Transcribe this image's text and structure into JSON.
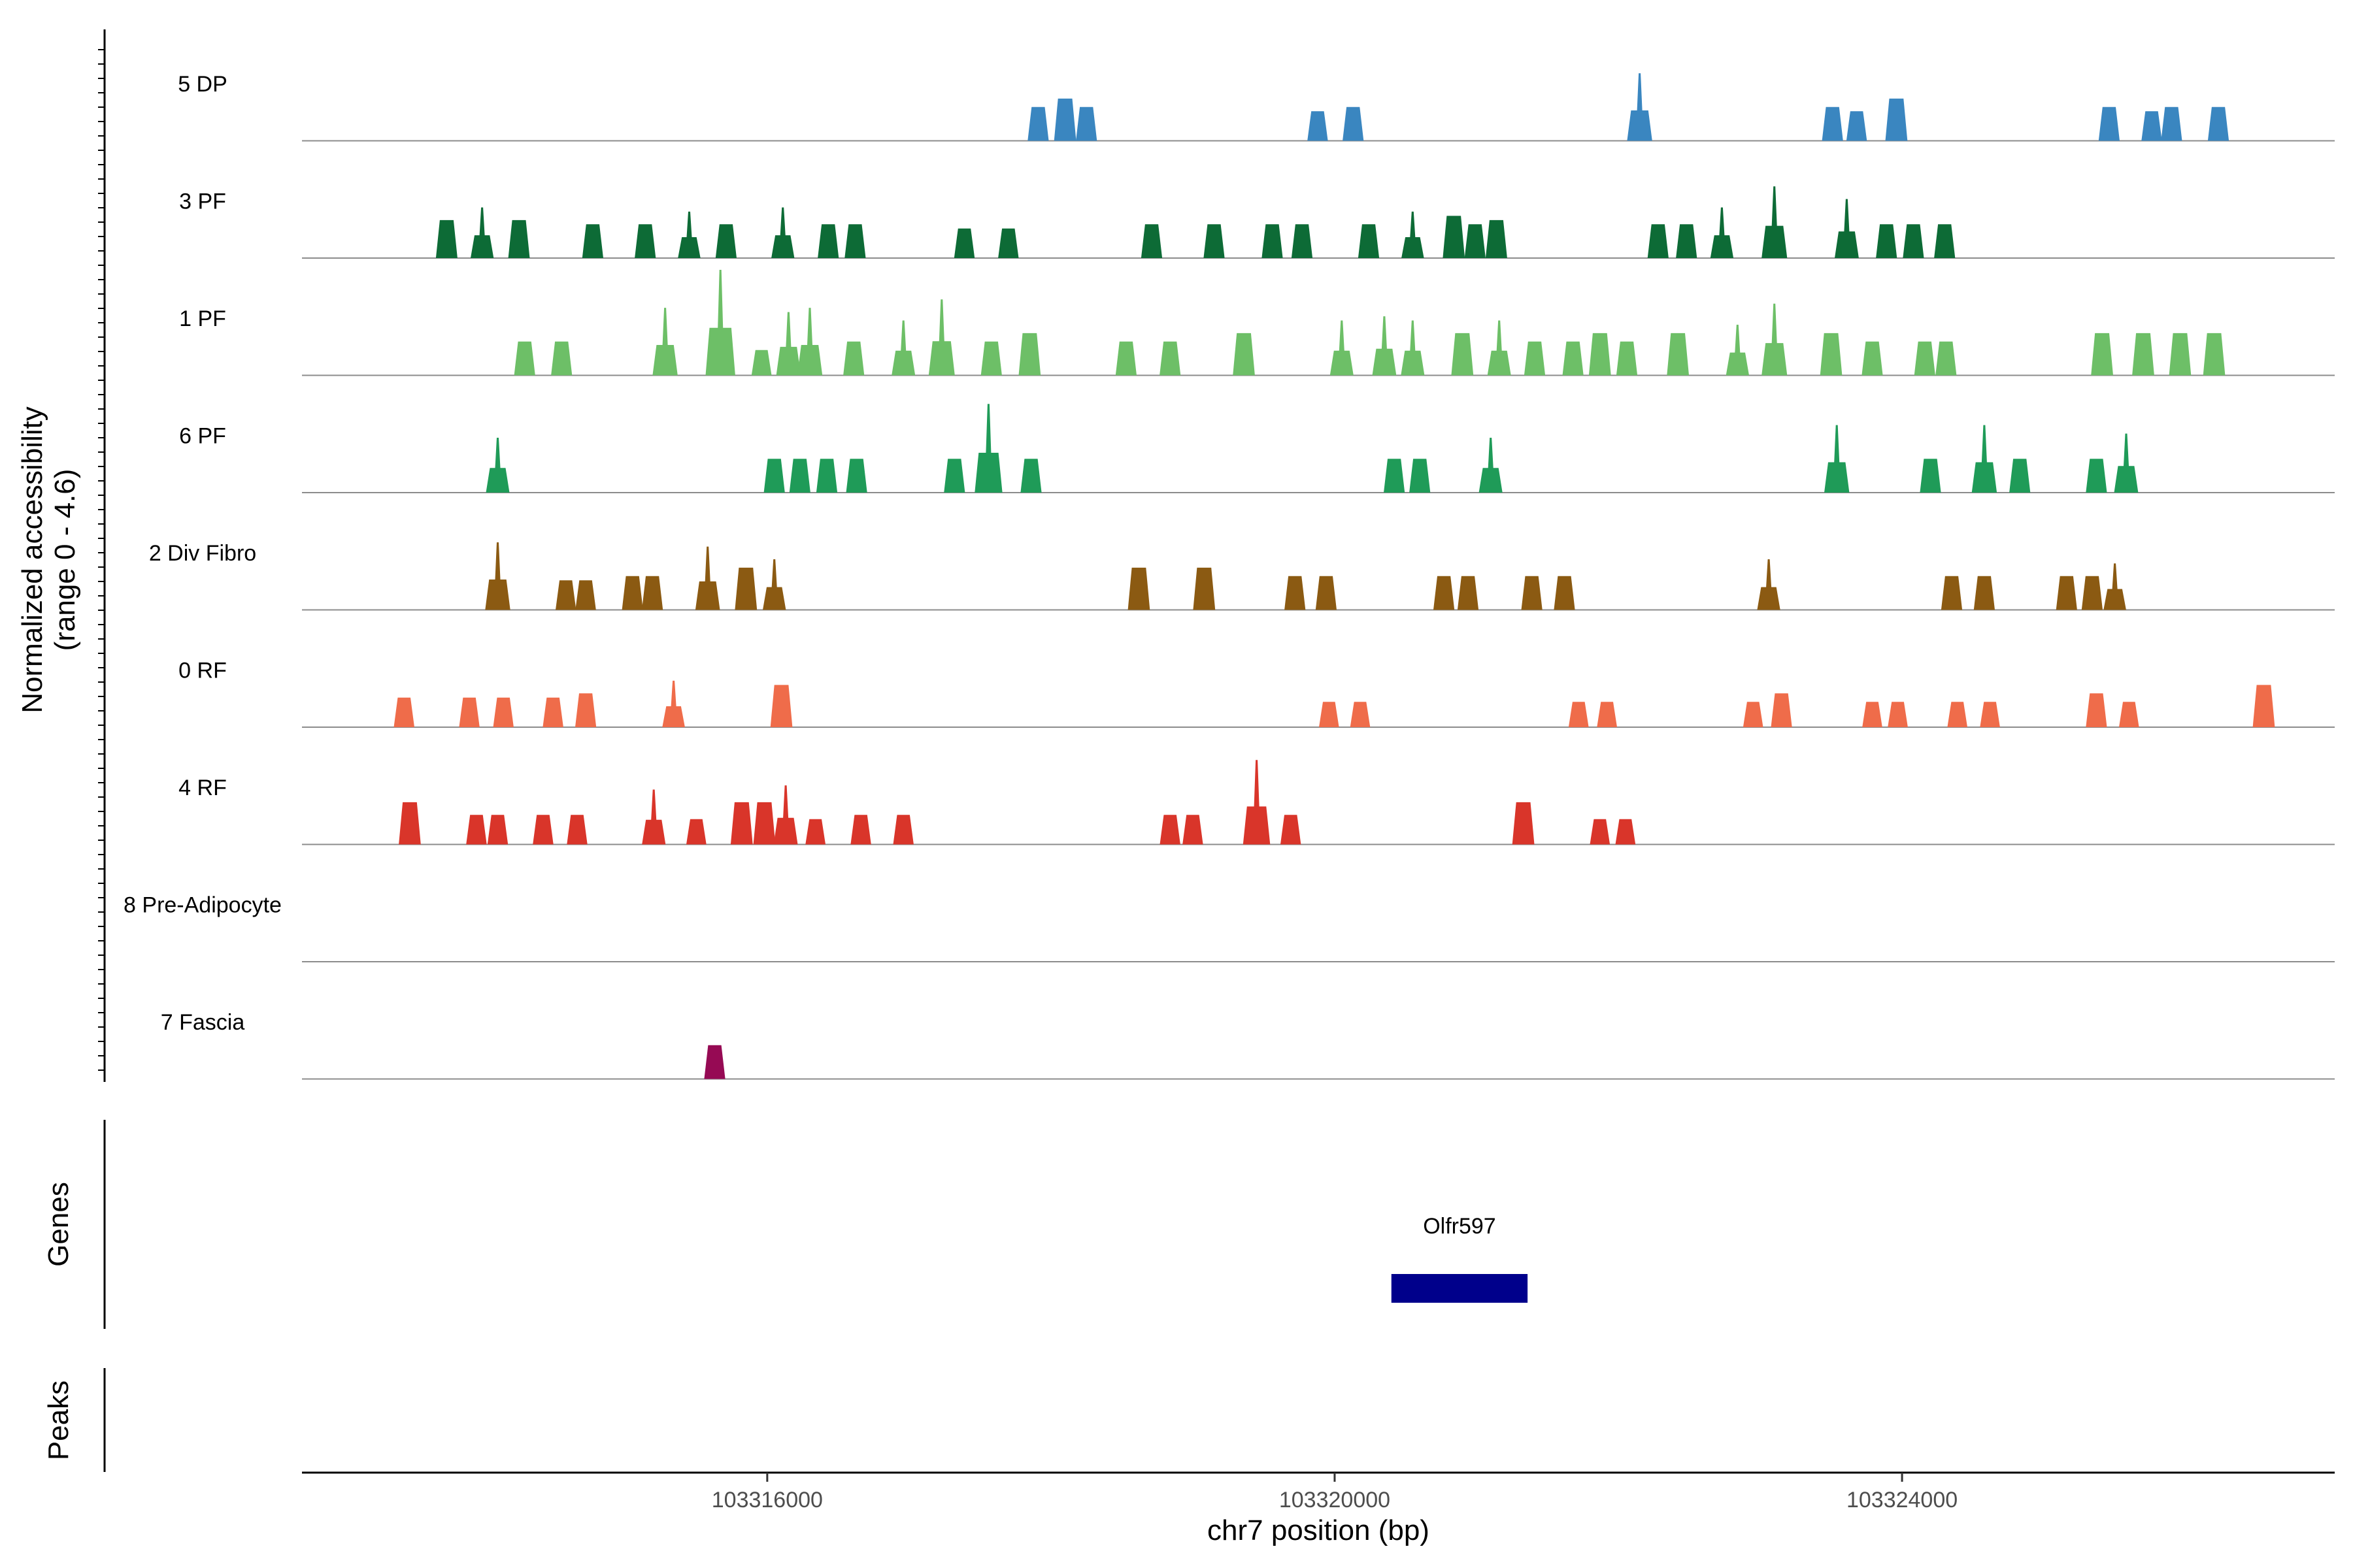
{
  "chart_data": {
    "type": "area",
    "title": "",
    "y_axis_label": "Normalized accessibility",
    "y_axis_range_label": "(range 0 - 4.6)",
    "ylim": [
      0,
      4.6
    ],
    "genes_label": "Genes",
    "peaks_label": "Peaks",
    "xlabel": "chr7 position (bp)",
    "xlim": [
      103312720,
      103327050
    ],
    "x_ticks": [
      103316000,
      103320000,
      103324000
    ],
    "x_tick_labels": [
      "103316000",
      "103320000",
      "103324000"
    ],
    "tracks": [
      {
        "name": "5 DP",
        "color": "#3a86c0",
        "peaks": [
          [
            103317910,
            80
          ],
          [
            103318100,
            100
          ],
          [
            103318250,
            80
          ],
          [
            103319880,
            70
          ],
          [
            103320130,
            80
          ],
          [
            103322150,
            160
          ],
          [
            103323510,
            80
          ],
          [
            103323680,
            70
          ],
          [
            103323960,
            100
          ],
          [
            103325460,
            80
          ],
          [
            103325760,
            70
          ],
          [
            103325900,
            80
          ],
          [
            103326230,
            80
          ]
        ]
      },
      {
        "name": "3 PF",
        "color": "#0d6b36",
        "peaks": [
          [
            103313740,
            90
          ],
          [
            103313990,
            120
          ],
          [
            103314250,
            90
          ],
          [
            103314770,
            80
          ],
          [
            103315140,
            80
          ],
          [
            103315450,
            110
          ],
          [
            103315710,
            80
          ],
          [
            103316110,
            120
          ],
          [
            103316430,
            80
          ],
          [
            103316620,
            80
          ],
          [
            103317390,
            70
          ],
          [
            103317700,
            70
          ],
          [
            103318710,
            80
          ],
          [
            103319150,
            80
          ],
          [
            103319560,
            80
          ],
          [
            103319770,
            80
          ],
          [
            103320240,
            80
          ],
          [
            103320550,
            110
          ],
          [
            103320840,
            100
          ],
          [
            103320990,
            80
          ],
          [
            103321140,
            90
          ],
          [
            103322280,
            80
          ],
          [
            103322480,
            80
          ],
          [
            103322730,
            120
          ],
          [
            103323100,
            170
          ],
          [
            103323610,
            140
          ],
          [
            103323890,
            80
          ],
          [
            103324080,
            80
          ],
          [
            103324300,
            80
          ]
        ]
      },
      {
        "name": "1 PF",
        "color": "#6dbf67",
        "peaks": [
          [
            103314290,
            80
          ],
          [
            103314550,
            80
          ],
          [
            103315280,
            160
          ],
          [
            103315670,
            250
          ],
          [
            103315960,
            60
          ],
          [
            103316150,
            150
          ],
          [
            103316300,
            160
          ],
          [
            103316610,
            80
          ],
          [
            103316960,
            130
          ],
          [
            103317230,
            180
          ],
          [
            103317580,
            80
          ],
          [
            103317850,
            100
          ],
          [
            103318530,
            80
          ],
          [
            103318840,
            80
          ],
          [
            103319360,
            100
          ],
          [
            103320050,
            130
          ],
          [
            103320350,
            140
          ],
          [
            103320550,
            130
          ],
          [
            103320900,
            100
          ],
          [
            103321160,
            130
          ],
          [
            103321410,
            80
          ],
          [
            103321680,
            80
          ],
          [
            103321870,
            100
          ],
          [
            103322060,
            80
          ],
          [
            103322420,
            100
          ],
          [
            103322840,
            120
          ],
          [
            103323100,
            170
          ],
          [
            103323500,
            100
          ],
          [
            103323790,
            80
          ],
          [
            103324160,
            80
          ],
          [
            103324310,
            80
          ],
          [
            103325410,
            100
          ],
          [
            103325700,
            100
          ],
          [
            103325960,
            100
          ],
          [
            103326200,
            100
          ]
        ]
      },
      {
        "name": "6 PF",
        "color": "#1f9b58",
        "peaks": [
          [
            103314100,
            130
          ],
          [
            103316050,
            80
          ],
          [
            103316230,
            80
          ],
          [
            103316420,
            80
          ],
          [
            103316630,
            80
          ],
          [
            103317320,
            80
          ],
          [
            103317560,
            210
          ],
          [
            103317860,
            80
          ],
          [
            103320420,
            80
          ],
          [
            103320600,
            80
          ],
          [
            103321100,
            130
          ],
          [
            103323540,
            160
          ],
          [
            103324200,
            80
          ],
          [
            103324580,
            160
          ],
          [
            103324830,
            80
          ],
          [
            103325370,
            80
          ],
          [
            103325580,
            140
          ]
        ]
      },
      {
        "name": "2 Div Fibro",
        "color": "#8b5a12",
        "peaks": [
          [
            103314100,
            160
          ],
          [
            103314580,
            70
          ],
          [
            103314720,
            70
          ],
          [
            103315050,
            80
          ],
          [
            103315190,
            80
          ],
          [
            103315580,
            150
          ],
          [
            103315850,
            100
          ],
          [
            103316050,
            120
          ],
          [
            103318620,
            100
          ],
          [
            103319080,
            100
          ],
          [
            103319720,
            80
          ],
          [
            103319940,
            80
          ],
          [
            103320770,
            80
          ],
          [
            103320940,
            80
          ],
          [
            103321390,
            80
          ],
          [
            103321620,
            80
          ],
          [
            103323060,
            120
          ],
          [
            103324350,
            80
          ],
          [
            103324580,
            80
          ],
          [
            103325160,
            80
          ],
          [
            103325340,
            80
          ],
          [
            103325500,
            110
          ]
        ]
      },
      {
        "name": "0 RF",
        "color": "#ef6c4a",
        "peaks": [
          [
            103313440,
            70
          ],
          [
            103313900,
            70
          ],
          [
            103314140,
            70
          ],
          [
            103314490,
            70
          ],
          [
            103314720,
            80
          ],
          [
            103315340,
            110
          ],
          [
            103316100,
            100
          ],
          [
            103319960,
            60
          ],
          [
            103320180,
            60
          ],
          [
            103321720,
            60
          ],
          [
            103321920,
            60
          ],
          [
            103322950,
            60
          ],
          [
            103323150,
            80
          ],
          [
            103323790,
            60
          ],
          [
            103323970,
            60
          ],
          [
            103324390,
            60
          ],
          [
            103324620,
            60
          ],
          [
            103325370,
            80
          ],
          [
            103325600,
            60
          ],
          [
            103326550,
            100
          ]
        ]
      },
      {
        "name": "4 RF",
        "color": "#d9352a",
        "peaks": [
          [
            103313480,
            100
          ],
          [
            103313950,
            70
          ],
          [
            103314100,
            70
          ],
          [
            103314420,
            70
          ],
          [
            103314660,
            70
          ],
          [
            103315200,
            130
          ],
          [
            103315500,
            60
          ],
          [
            103315820,
            100
          ],
          [
            103315980,
            100
          ],
          [
            103316130,
            140
          ],
          [
            103316340,
            60
          ],
          [
            103316660,
            70
          ],
          [
            103316960,
            70
          ],
          [
            103318840,
            70
          ],
          [
            103319000,
            70
          ],
          [
            103319450,
            200
          ],
          [
            103319690,
            70
          ],
          [
            103321330,
            100
          ],
          [
            103321870,
            60
          ],
          [
            103322050,
            60
          ]
        ]
      },
      {
        "name": "8 Pre-Adipocyte",
        "color": "#6b2a7b",
        "peaks": []
      },
      {
        "name": "7 Fascia",
        "color": "#960a54",
        "peaks": [
          [
            103315630,
            80
          ]
        ]
      }
    ],
    "genes": [
      {
        "name": "Olfr597",
        "start": 103320400,
        "end": 103321360,
        "color": "#00008b"
      }
    ]
  }
}
